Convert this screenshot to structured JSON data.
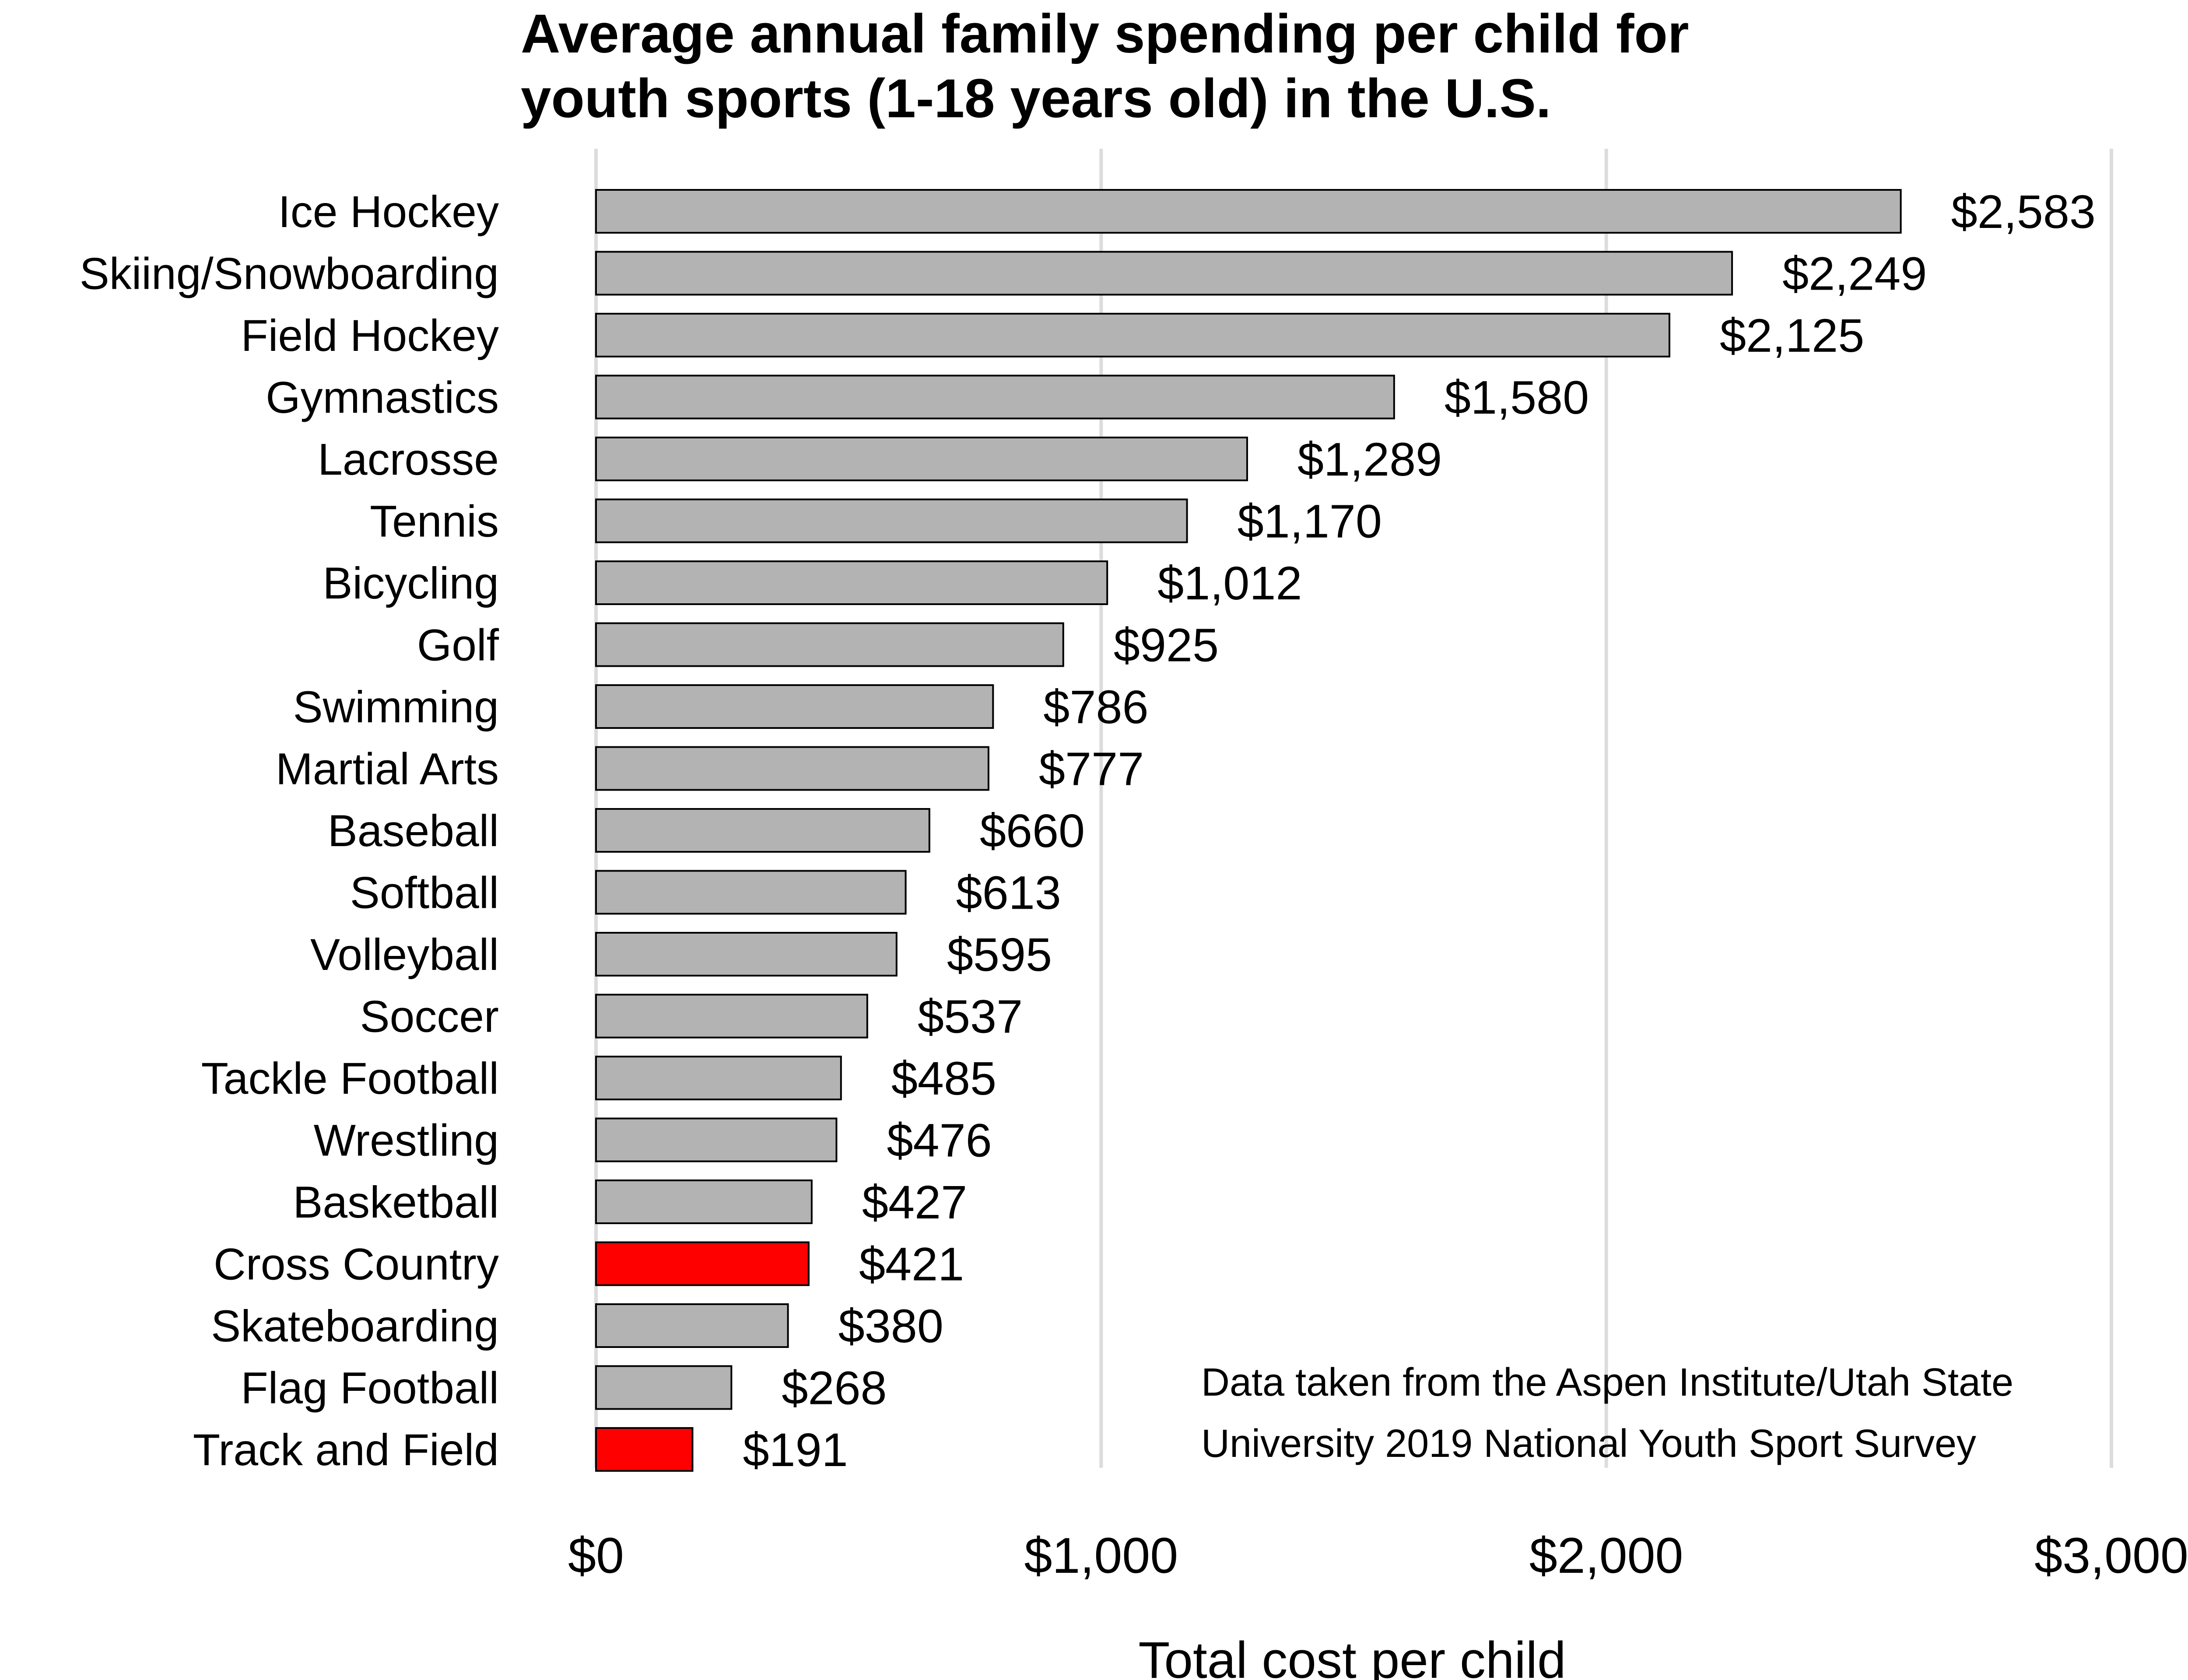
{
  "chart_data": {
    "type": "bar",
    "orientation": "horizontal",
    "title": "Average annual family spending per child for youth sports (1-18 years old) in the U.S.",
    "title_lines": [
      "Average annual family spending per child for",
      "youth sports (1-18 years old) in the U.S."
    ],
    "xlabel": "Total cost per child",
    "ylabel": "",
    "xlim": [
      0,
      3000
    ],
    "x_ticks": [
      0,
      1000,
      2000,
      3000
    ],
    "x_tick_labels": [
      "$0",
      "$1,000",
      "$2,000",
      "$3,000"
    ],
    "grid": true,
    "categories": [
      "Ice Hockey",
      "Skiing/Snowboarding",
      "Field Hockey",
      "Gymnastics",
      "Lacrosse",
      "Tennis",
      "Bicycling",
      "Golf",
      "Swimming",
      "Martial Arts",
      "Baseball",
      "Softball",
      "Volleyball",
      "Soccer",
      "Tackle Football",
      "Wrestling",
      "Basketball",
      "Cross Country",
      "Skateboarding",
      "Flag Football",
      "Track and Field"
    ],
    "values": [
      2583,
      2249,
      2125,
      1580,
      1289,
      1170,
      1012,
      925,
      786,
      777,
      660,
      613,
      595,
      537,
      485,
      476,
      427,
      421,
      380,
      268,
      191
    ],
    "value_labels": [
      "$2,583",
      "$2,249",
      "$2,125",
      "$1,580",
      "$1,289",
      "$1,170",
      "$1,012",
      "$925",
      "$786",
      "$777",
      "$660",
      "$613",
      "$595",
      "$537",
      "$485",
      "$476",
      "$427",
      "$421",
      "$380",
      "$268",
      "$191"
    ],
    "highlighted": [
      "Cross Country",
      "Track and Field"
    ],
    "colors": {
      "default_bar": "#b3b3b3",
      "highlight_bar": "#ff0000",
      "bar_outline": "#000000",
      "grid": "#dcdcdc"
    },
    "annotation_lines": [
      "Data taken from the Aspen Institute/Utah State",
      "University 2019 National Youth Sport Survey"
    ]
  }
}
